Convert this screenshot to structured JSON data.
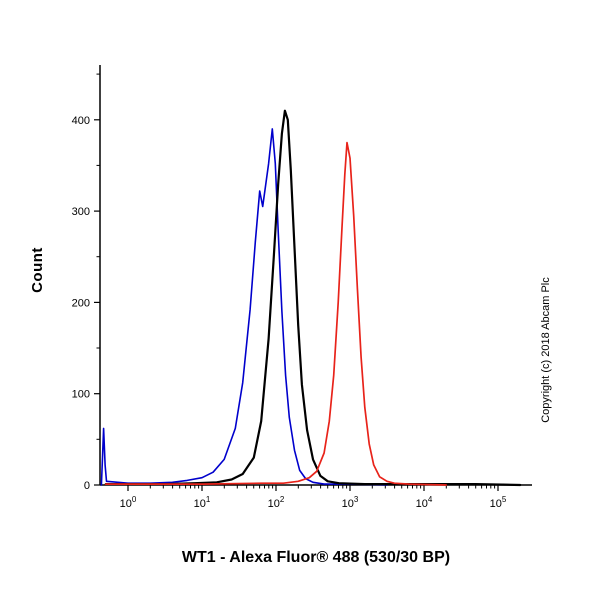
{
  "page": {
    "xlabel": "WT1 - Alexa Fluor® 488 (530/30 BP)",
    "ylabel": "Count",
    "copyright": "Copyright (c) 2018 Abcam Plc"
  },
  "chart_data": {
    "type": "line",
    "subtype": "flow-cytometry-histogram-overlay",
    "title": "",
    "xlabel": "WT1 - Alexa Fluor® 488 (530/30 BP)",
    "ylabel": "Count",
    "x_scale": "log10",
    "x_tick_exponents": [
      0,
      1,
      2,
      3,
      4,
      5
    ],
    "x_tick_base": "10",
    "y_ticks": [
      0,
      100,
      200,
      300,
      400
    ],
    "y_minor_ticks": [
      50,
      150,
      250,
      350,
      450
    ],
    "ylim": [
      0,
      460
    ],
    "xlim_log10": [
      -0.38,
      5.05
    ],
    "grid": false,
    "legend": "none",
    "axis_color": "#000000",
    "series": [
      {
        "name": "blue-curve",
        "color": "#0000cc",
        "stroke_width": 1.6,
        "peak": {
          "x_log10": 1.95,
          "count": 390
        },
        "points": [
          [
            -0.36,
            0
          ],
          [
            -0.345,
            30
          ],
          [
            -0.33,
            62
          ],
          [
            -0.31,
            22
          ],
          [
            -0.29,
            4
          ],
          [
            0.0,
            2
          ],
          [
            0.3,
            2
          ],
          [
            0.6,
            3
          ],
          [
            0.8,
            5
          ],
          [
            1.0,
            8
          ],
          [
            1.15,
            14
          ],
          [
            1.3,
            28
          ],
          [
            1.45,
            62
          ],
          [
            1.55,
            112
          ],
          [
            1.65,
            192
          ],
          [
            1.72,
            266
          ],
          [
            1.78,
            322
          ],
          [
            1.82,
            305
          ],
          [
            1.86,
            328
          ],
          [
            1.9,
            352
          ],
          [
            1.95,
            390
          ],
          [
            1.99,
            352
          ],
          [
            2.03,
            278
          ],
          [
            2.08,
            190
          ],
          [
            2.13,
            120
          ],
          [
            2.18,
            74
          ],
          [
            2.25,
            38
          ],
          [
            2.32,
            16
          ],
          [
            2.4,
            7
          ],
          [
            2.5,
            3
          ],
          [
            2.65,
            1
          ],
          [
            3.0,
            1
          ],
          [
            3.5,
            0
          ]
        ]
      },
      {
        "name": "black-curve",
        "color": "#000000",
        "stroke_width": 2.2,
        "peak": {
          "x_log10": 2.12,
          "count": 410
        },
        "points": [
          [
            -0.3,
            1
          ],
          [
            0.5,
            1
          ],
          [
            0.9,
            2
          ],
          [
            1.2,
            3
          ],
          [
            1.4,
            6
          ],
          [
            1.55,
            12
          ],
          [
            1.7,
            30
          ],
          [
            1.8,
            70
          ],
          [
            1.9,
            160
          ],
          [
            1.97,
            250
          ],
          [
            2.03,
            330
          ],
          [
            2.08,
            385
          ],
          [
            2.12,
            410
          ],
          [
            2.16,
            400
          ],
          [
            2.2,
            345
          ],
          [
            2.25,
            260
          ],
          [
            2.3,
            175
          ],
          [
            2.35,
            110
          ],
          [
            2.42,
            60
          ],
          [
            2.5,
            28
          ],
          [
            2.6,
            10
          ],
          [
            2.7,
            4
          ],
          [
            2.85,
            2
          ],
          [
            3.2,
            1
          ],
          [
            4.0,
            1
          ],
          [
            4.7,
            1
          ],
          [
            5.3,
            0
          ]
        ]
      },
      {
        "name": "red-curve",
        "color": "#e8231a",
        "stroke_width": 1.7,
        "peak": {
          "x_log10": 2.96,
          "count": 375
        },
        "points": [
          [
            -0.3,
            1
          ],
          [
            1.0,
            1
          ],
          [
            1.8,
            2
          ],
          [
            2.1,
            2
          ],
          [
            2.3,
            4
          ],
          [
            2.45,
            8
          ],
          [
            2.55,
            15
          ],
          [
            2.65,
            35
          ],
          [
            2.72,
            70
          ],
          [
            2.78,
            120
          ],
          [
            2.84,
            200
          ],
          [
            2.89,
            280
          ],
          [
            2.93,
            340
          ],
          [
            2.96,
            375
          ],
          [
            3.0,
            358
          ],
          [
            3.05,
            295
          ],
          [
            3.1,
            215
          ],
          [
            3.15,
            140
          ],
          [
            3.2,
            85
          ],
          [
            3.26,
            45
          ],
          [
            3.32,
            22
          ],
          [
            3.4,
            9
          ],
          [
            3.5,
            4
          ],
          [
            3.6,
            2
          ],
          [
            3.8,
            1
          ],
          [
            4.3,
            0
          ]
        ]
      }
    ]
  }
}
